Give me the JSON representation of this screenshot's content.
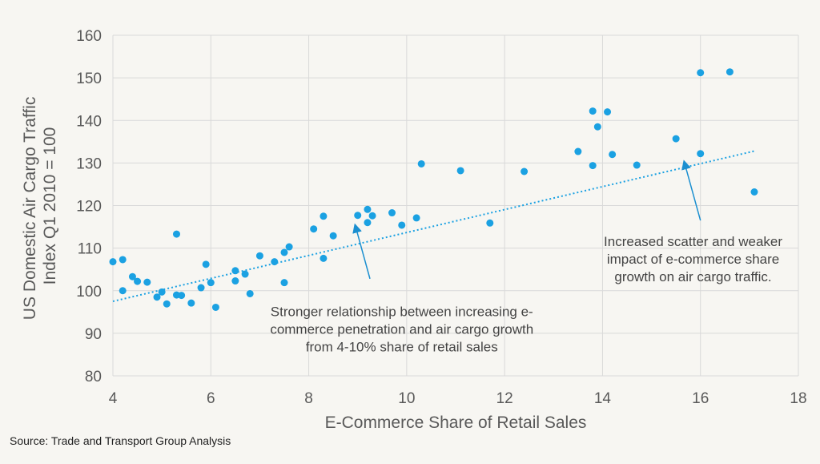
{
  "chart_data": {
    "type": "scatter",
    "title": "",
    "xlabel": "E-Commerce Share of Retail Sales",
    "ylabel_lines": [
      "US Domestic Air Cargo Traffic",
      "Index Q1 2010 = 100"
    ],
    "xlim": [
      4,
      18
    ],
    "ylim": [
      80,
      160
    ],
    "x_ticks": [
      4,
      6,
      8,
      10,
      12,
      14,
      16,
      18
    ],
    "y_ticks": [
      80,
      90,
      100,
      110,
      120,
      130,
      140,
      150,
      160
    ],
    "grid": true,
    "point_color": "#1ba1e2",
    "trend_color": "#1ba1e2",
    "trendline": {
      "x": [
        4,
        17.1
      ],
      "y": [
        97.5,
        132.8
      ]
    },
    "points": [
      {
        "x": 4.0,
        "y": 106.8
      },
      {
        "x": 4.2,
        "y": 107.3
      },
      {
        "x": 4.2,
        "y": 100.0
      },
      {
        "x": 4.4,
        "y": 103.3
      },
      {
        "x": 4.5,
        "y": 102.2
      },
      {
        "x": 4.7,
        "y": 102.0
      },
      {
        "x": 4.9,
        "y": 98.5
      },
      {
        "x": 5.0,
        "y": 99.7
      },
      {
        "x": 5.1,
        "y": 96.9
      },
      {
        "x": 5.3,
        "y": 113.3
      },
      {
        "x": 5.3,
        "y": 99.0
      },
      {
        "x": 5.4,
        "y": 98.9
      },
      {
        "x": 5.6,
        "y": 97.1
      },
      {
        "x": 5.8,
        "y": 100.7
      },
      {
        "x": 5.9,
        "y": 106.2
      },
      {
        "x": 6.0,
        "y": 101.9
      },
      {
        "x": 6.1,
        "y": 96.1
      },
      {
        "x": 6.5,
        "y": 104.7
      },
      {
        "x": 6.5,
        "y": 102.3
      },
      {
        "x": 6.7,
        "y": 103.9
      },
      {
        "x": 6.8,
        "y": 99.3
      },
      {
        "x": 7.0,
        "y": 108.2
      },
      {
        "x": 7.3,
        "y": 106.8
      },
      {
        "x": 7.5,
        "y": 109.0
      },
      {
        "x": 7.5,
        "y": 101.9
      },
      {
        "x": 7.6,
        "y": 110.3
      },
      {
        "x": 8.1,
        "y": 114.5
      },
      {
        "x": 8.3,
        "y": 117.5
      },
      {
        "x": 8.3,
        "y": 107.6
      },
      {
        "x": 8.5,
        "y": 112.9
      },
      {
        "x": 9.0,
        "y": 117.7
      },
      {
        "x": 9.2,
        "y": 119.1
      },
      {
        "x": 9.2,
        "y": 116.0
      },
      {
        "x": 9.3,
        "y": 117.6
      },
      {
        "x": 9.7,
        "y": 118.3
      },
      {
        "x": 9.9,
        "y": 115.4
      },
      {
        "x": 10.2,
        "y": 117.1
      },
      {
        "x": 10.3,
        "y": 129.8
      },
      {
        "x": 11.1,
        "y": 128.2
      },
      {
        "x": 11.7,
        "y": 115.9
      },
      {
        "x": 12.4,
        "y": 128.0
      },
      {
        "x": 13.5,
        "y": 132.7
      },
      {
        "x": 13.8,
        "y": 142.2
      },
      {
        "x": 13.8,
        "y": 129.4
      },
      {
        "x": 13.9,
        "y": 138.5
      },
      {
        "x": 14.1,
        "y": 142.0
      },
      {
        "x": 14.2,
        "y": 132.0
      },
      {
        "x": 14.7,
        "y": 129.5
      },
      {
        "x": 15.5,
        "y": 135.7
      },
      {
        "x": 16.0,
        "y": 151.2
      },
      {
        "x": 16.0,
        "y": 132.2
      },
      {
        "x": 16.6,
        "y": 151.4
      },
      {
        "x": 17.1,
        "y": 123.2
      }
    ],
    "annotations": [
      {
        "name": "annotation-stronger-relationship",
        "lines": [
          "Stronger relationship between increasing e-",
          "commerce penetration and air cargo growth",
          "from 4-10% share of retail sales"
        ],
        "anchor_x": 9.9,
        "anchor_y": 94.0,
        "arrow_from": [
          9.25,
          102.8
        ],
        "arrow_to": [
          8.95,
          115.3
        ]
      },
      {
        "name": "annotation-increased-scatter",
        "lines": [
          "Increased scatter and weaker",
          "impact of e-commerce share",
          "growth on air cargo traffic."
        ],
        "anchor_x": 15.85,
        "anchor_y": 110.5,
        "arrow_from": [
          16.0,
          116.5
        ],
        "arrow_to": [
          15.67,
          130.2
        ]
      }
    ]
  },
  "footer": {
    "source": "Source: Trade and Transport Group Analysis"
  }
}
